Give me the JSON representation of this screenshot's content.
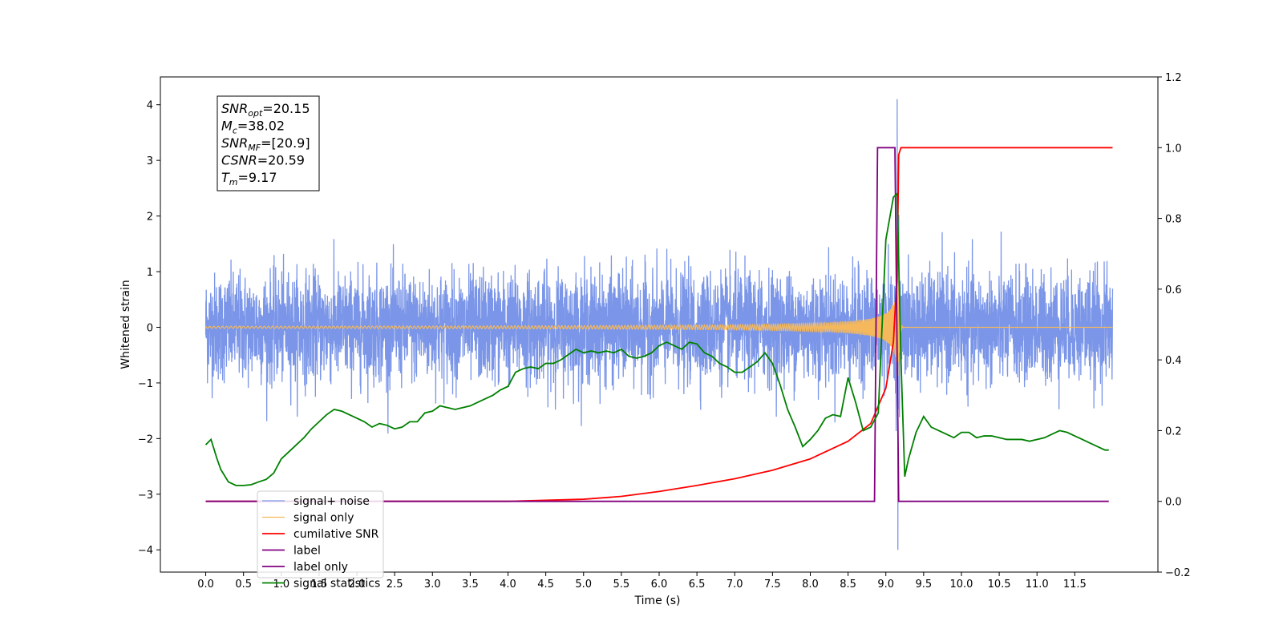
{
  "chart_data": {
    "type": "line",
    "title": "",
    "xlabel": "Time (s)",
    "ylabel": "Whitened strain",
    "xlim": [
      -0.6,
      12.6
    ],
    "ylim": [
      -4.4,
      4.5
    ],
    "y2lim": [
      -0.2,
      1.2
    ],
    "xticks": [
      0.0,
      0.5,
      1.0,
      1.5,
      2.0,
      2.5,
      3.0,
      3.5,
      4.0,
      4.5,
      5.0,
      5.5,
      6.0,
      6.5,
      7.0,
      7.5,
      8.0,
      8.5,
      9.0,
      9.5,
      10.0,
      10.5,
      11.0,
      11.5
    ],
    "xtick_labels": [
      "0.0",
      "0.5",
      "1.0",
      "1.5",
      "2.0",
      "2.5",
      "3.0",
      "3.5",
      "4.0",
      "4.5",
      "5.0",
      "5.5",
      "6.0",
      "6.5",
      "7.0",
      "7.5",
      "8.0",
      "8.5",
      "9.0",
      "9.5",
      "10.0",
      "10.5",
      "11.0",
      "11.5"
    ],
    "yticks": [
      -4,
      -3,
      -2,
      -1,
      0,
      1,
      2,
      3,
      4
    ],
    "ytick_labels": [
      "−4",
      "−3",
      "−2",
      "−1",
      "0",
      "1",
      "2",
      "3",
      "4"
    ],
    "y2ticks": [
      -0.2,
      0.0,
      0.2,
      0.4,
      0.6,
      0.8,
      1.0,
      1.2
    ],
    "y2tick_labels": [
      "−0.2",
      "0.0",
      "0.2",
      "0.4",
      "0.6",
      "0.8",
      "1.0",
      "1.2"
    ],
    "grid": false,
    "legend": "lower-left",
    "annotation": [
      {
        "base": "SNR",
        "sub": "opt",
        "value": "=20.15"
      },
      {
        "base": "M",
        "sub": "c",
        "value": "=38.02"
      },
      {
        "base": "SNR",
        "sub": "MF",
        "value": "=[20.9]"
      },
      {
        "base": "CSNR",
        "sub": "",
        "value": "=20.59"
      },
      {
        "base": "T",
        "sub": "m",
        "value": "=9.17"
      }
    ],
    "series": [
      {
        "name": "signal+ noise",
        "axis": "left",
        "color": "#7b96e8",
        "kind": "noise",
        "x_range": [
          0.0,
          12.0
        ],
        "typical_amplitude": 1.2,
        "max": 4.1,
        "max_x": 9.15,
        "min": -4.0,
        "min_x": 9.16
      },
      {
        "name": "signal only",
        "axis": "left",
        "color": "#f5b85c",
        "kind": "chirp",
        "x_range": [
          0.0,
          12.0
        ],
        "merger_time": 9.17,
        "peak_amplitude": 1.1
      },
      {
        "name": "cumilative SNR",
        "axis": "right",
        "color": "#ff0000",
        "x": [
          0.0,
          4.0,
          5.0,
          5.5,
          6.0,
          6.5,
          7.0,
          7.5,
          8.0,
          8.5,
          8.8,
          9.0,
          9.1,
          9.15,
          9.17,
          9.2,
          11.5,
          12.0
        ],
        "y": [
          0.0,
          0.0,
          0.006,
          0.014,
          0.028,
          0.045,
          0.064,
          0.088,
          0.12,
          0.17,
          0.22,
          0.32,
          0.45,
          0.65,
          0.98,
          1.0,
          1.0,
          1.0
        ]
      },
      {
        "name": "label",
        "axis": "right",
        "color": "#800080",
        "x": [
          0.0,
          8.85,
          8.89,
          9.12,
          9.17,
          11.95
        ],
        "y": [
          0.0,
          0.0,
          1.0,
          1.0,
          0.0,
          0.0
        ]
      },
      {
        "name": "label only",
        "axis": "right",
        "color": "#800080",
        "x": [],
        "y": []
      },
      {
        "name": "signal statistics",
        "axis": "right",
        "color": "#008000",
        "x": [
          0.0,
          0.07,
          0.15,
          0.2,
          0.3,
          0.4,
          0.5,
          0.6,
          0.7,
          0.8,
          0.9,
          1.0,
          1.1,
          1.2,
          1.3,
          1.4,
          1.5,
          1.6,
          1.7,
          1.8,
          1.9,
          2.0,
          2.1,
          2.2,
          2.3,
          2.4,
          2.5,
          2.6,
          2.7,
          2.8,
          2.9,
          3.0,
          3.1,
          3.2,
          3.3,
          3.4,
          3.5,
          3.6,
          3.7,
          3.8,
          3.9,
          4.0,
          4.1,
          4.2,
          4.3,
          4.4,
          4.5,
          4.6,
          4.7,
          4.8,
          4.9,
          5.0,
          5.1,
          5.2,
          5.3,
          5.4,
          5.5,
          5.6,
          5.7,
          5.8,
          5.9,
          6.0,
          6.1,
          6.2,
          6.3,
          6.4,
          6.5,
          6.6,
          6.7,
          6.8,
          6.9,
          7.0,
          7.1,
          7.2,
          7.3,
          7.4,
          7.5,
          7.6,
          7.7,
          7.8,
          7.9,
          8.0,
          8.1,
          8.2,
          8.3,
          8.4,
          8.5,
          8.6,
          8.7,
          8.8,
          8.9,
          9.0,
          9.1,
          9.15,
          9.2,
          9.25,
          9.3,
          9.4,
          9.5,
          9.6,
          9.7,
          9.8,
          9.9,
          10.0,
          10.1,
          10.2,
          10.3,
          10.4,
          10.5,
          10.6,
          10.7,
          10.8,
          10.9,
          11.0,
          11.1,
          11.2,
          11.3,
          11.4,
          11.5,
          11.6,
          11.7,
          11.8,
          11.9,
          11.95
        ],
        "y": [
          0.16,
          0.175,
          0.12,
          0.09,
          0.055,
          0.045,
          0.045,
          0.047,
          0.055,
          0.062,
          0.08,
          0.12,
          0.14,
          0.16,
          0.18,
          0.205,
          0.225,
          0.245,
          0.26,
          0.255,
          0.245,
          0.235,
          0.225,
          0.21,
          0.22,
          0.215,
          0.205,
          0.21,
          0.225,
          0.225,
          0.25,
          0.255,
          0.27,
          0.265,
          0.26,
          0.265,
          0.27,
          0.28,
          0.29,
          0.3,
          0.315,
          0.325,
          0.365,
          0.375,
          0.38,
          0.375,
          0.39,
          0.39,
          0.4,
          0.415,
          0.43,
          0.42,
          0.425,
          0.42,
          0.425,
          0.42,
          0.43,
          0.41,
          0.405,
          0.41,
          0.42,
          0.44,
          0.45,
          0.44,
          0.43,
          0.45,
          0.445,
          0.42,
          0.41,
          0.39,
          0.38,
          0.365,
          0.365,
          0.38,
          0.395,
          0.42,
          0.39,
          0.33,
          0.26,
          0.21,
          0.155,
          0.175,
          0.2,
          0.235,
          0.245,
          0.24,
          0.35,
          0.28,
          0.2,
          0.21,
          0.25,
          0.74,
          0.86,
          0.87,
          0.4,
          0.07,
          0.12,
          0.195,
          0.24,
          0.21,
          0.2,
          0.19,
          0.18,
          0.195,
          0.195,
          0.18,
          0.185,
          0.185,
          0.18,
          0.175,
          0.175,
          0.175,
          0.17,
          0.175,
          0.18,
          0.19,
          0.2,
          0.195,
          0.185,
          0.175,
          0.165,
          0.155,
          0.145,
          0.145
        ]
      }
    ]
  }
}
